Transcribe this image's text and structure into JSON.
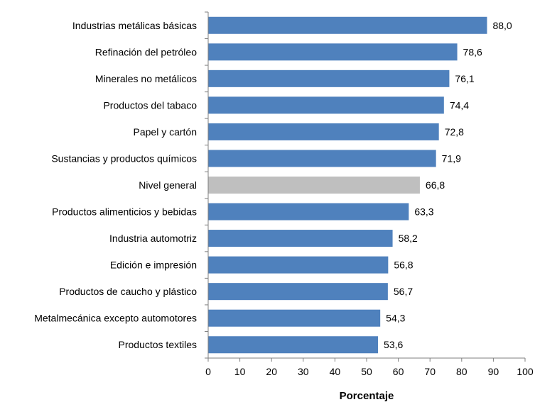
{
  "chart_data": {
    "type": "bar",
    "orientation": "horizontal",
    "categories": [
      "Industrias metálicas básicas",
      "Refinación del petróleo",
      "Minerales no metálicos",
      "Productos del tabaco",
      "Papel y cartón",
      "Sustancias y productos químicos",
      "Nivel general",
      "Productos alimenticios y bebidas",
      "Industria automotriz",
      "Edición e impresión",
      "Productos de caucho y plástico",
      "Metalmecánica excepto automotores",
      "Productos textiles"
    ],
    "values": [
      88.0,
      78.6,
      76.1,
      74.4,
      72.8,
      71.9,
      66.8,
      63.3,
      58.2,
      56.8,
      56.7,
      54.3,
      53.6
    ],
    "value_labels": [
      "88,0",
      "78,6",
      "76,1",
      "74,4",
      "72,8",
      "71,9",
      "66,8",
      "63,3",
      "58,2",
      "56,8",
      "56,7",
      "54,3",
      "53,6"
    ],
    "highlight_category": "Nivel general",
    "xlabel": "Porcentaje",
    "ylabel": "",
    "xlim": [
      0,
      100
    ],
    "xticks": [
      "0",
      "10",
      "20",
      "30",
      "40",
      "50",
      "60",
      "70",
      "80",
      "90",
      "100"
    ],
    "grid": false,
    "colors": {
      "bar": "#4F81BD",
      "highlight": "#BFBFBF",
      "axis": "#7F7F7F"
    }
  }
}
